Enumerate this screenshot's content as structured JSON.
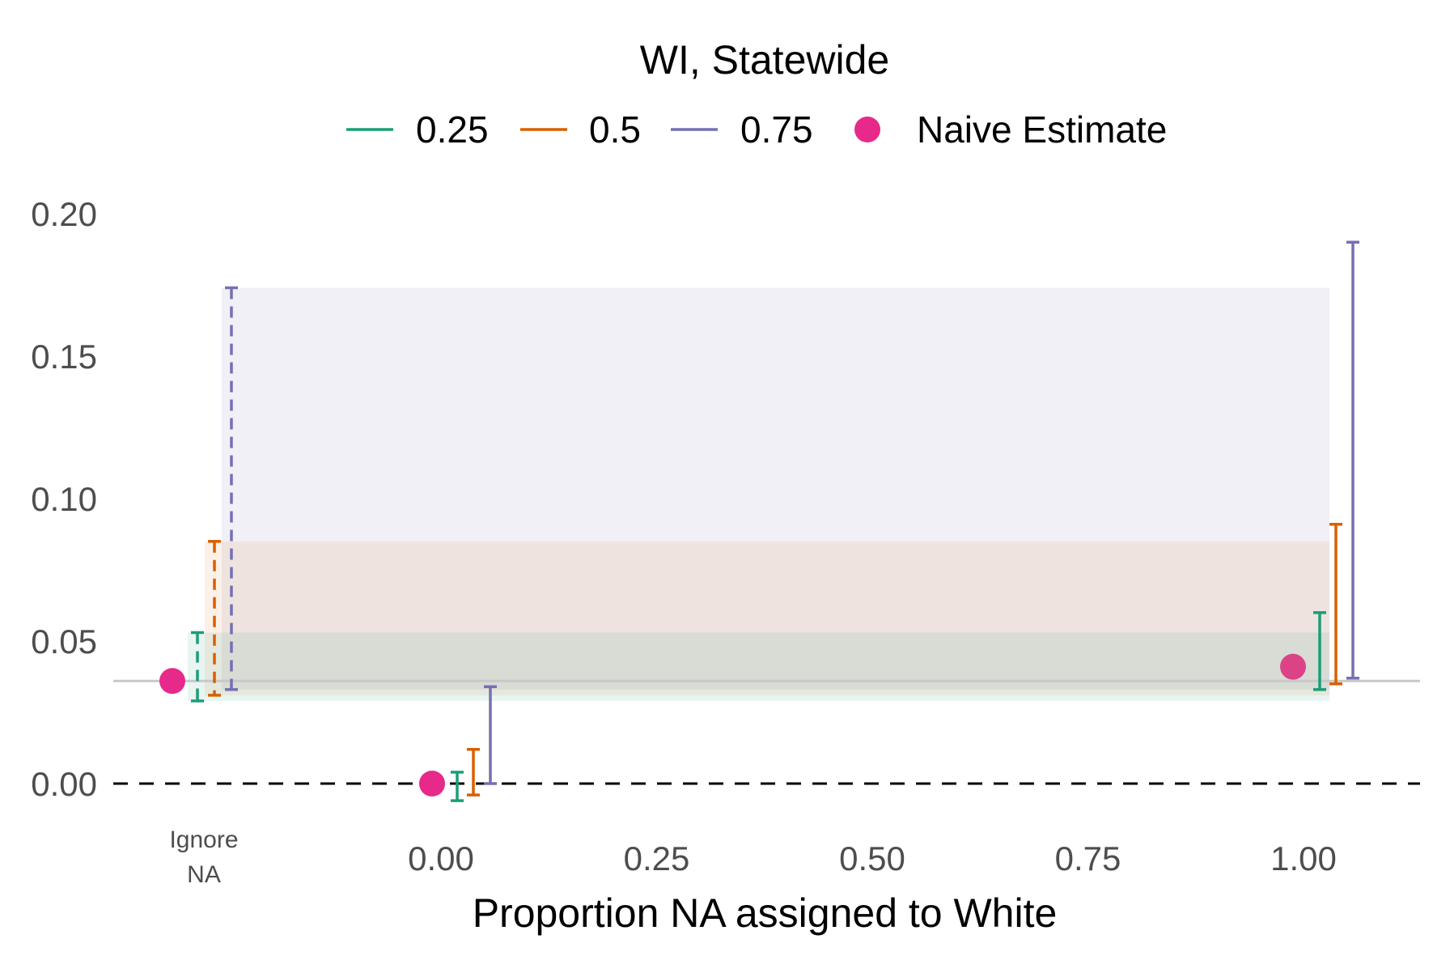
{
  "chart_data": {
    "type": "errorbar",
    "title": "WI, Statewide",
    "xlabel": "Proportion NA assigned to White",
    "ylabel": "",
    "ylim": [
      -0.04,
      0.2
    ],
    "x_tick_labels": [
      "0.00",
      "0.25",
      "0.50",
      "0.75",
      "1.00"
    ],
    "x_ticks": [
      0,
      0.25,
      0.5,
      0.75,
      1.0
    ],
    "x_special_label": [
      "Ignore",
      "NA"
    ],
    "y_tick_labels": [
      "0.00",
      "0.05",
      "0.10",
      "0.15",
      "0.20"
    ],
    "y_ticks": [
      0,
      0.05,
      0.1,
      0.15,
      0.2
    ],
    "reference_line": 0,
    "ignore_na_line": 0.036,
    "legend_position": "top",
    "legend": [
      {
        "label": "0.25",
        "kind": "line",
        "color": "#1b9e77"
      },
      {
        "label": "0.5",
        "kind": "line",
        "color": "#d95f02"
      },
      {
        "label": "0.75",
        "kind": "line",
        "color": "#7570b3"
      },
      {
        "label": "Naive Estimate",
        "kind": "point",
        "color": "#e7298a"
      }
    ],
    "series": [
      {
        "name": "0.25",
        "color": "#1b9e77",
        "ignore_na": {
          "low": 0.029,
          "high": 0.053
        },
        "bars": [
          {
            "x": 0,
            "low": -0.006,
            "high": 0.004
          },
          {
            "x": 1,
            "low": 0.033,
            "high": 0.06
          }
        ]
      },
      {
        "name": "0.5",
        "color": "#d95f02",
        "ignore_na": {
          "low": 0.031,
          "high": 0.085
        },
        "bars": [
          {
            "x": 0,
            "low": -0.004,
            "high": 0.012
          },
          {
            "x": 1,
            "low": 0.035,
            "high": 0.091
          }
        ]
      },
      {
        "name": "0.75",
        "color": "#7570b3",
        "ignore_na": {
          "low": 0.033,
          "high": 0.174
        },
        "bars": [
          {
            "x": 0,
            "low": 0.0,
            "high": 0.034
          },
          {
            "x": 1,
            "low": 0.037,
            "high": 0.19
          }
        ]
      }
    ],
    "naive_estimate": {
      "name": "Naive Estimate",
      "color": "#e7298a",
      "points": [
        {
          "x": "Ignore NA",
          "y": 0.036
        },
        {
          "x": 0,
          "y": 0.0
        },
        {
          "x": 1,
          "y": 0.041
        }
      ]
    }
  }
}
